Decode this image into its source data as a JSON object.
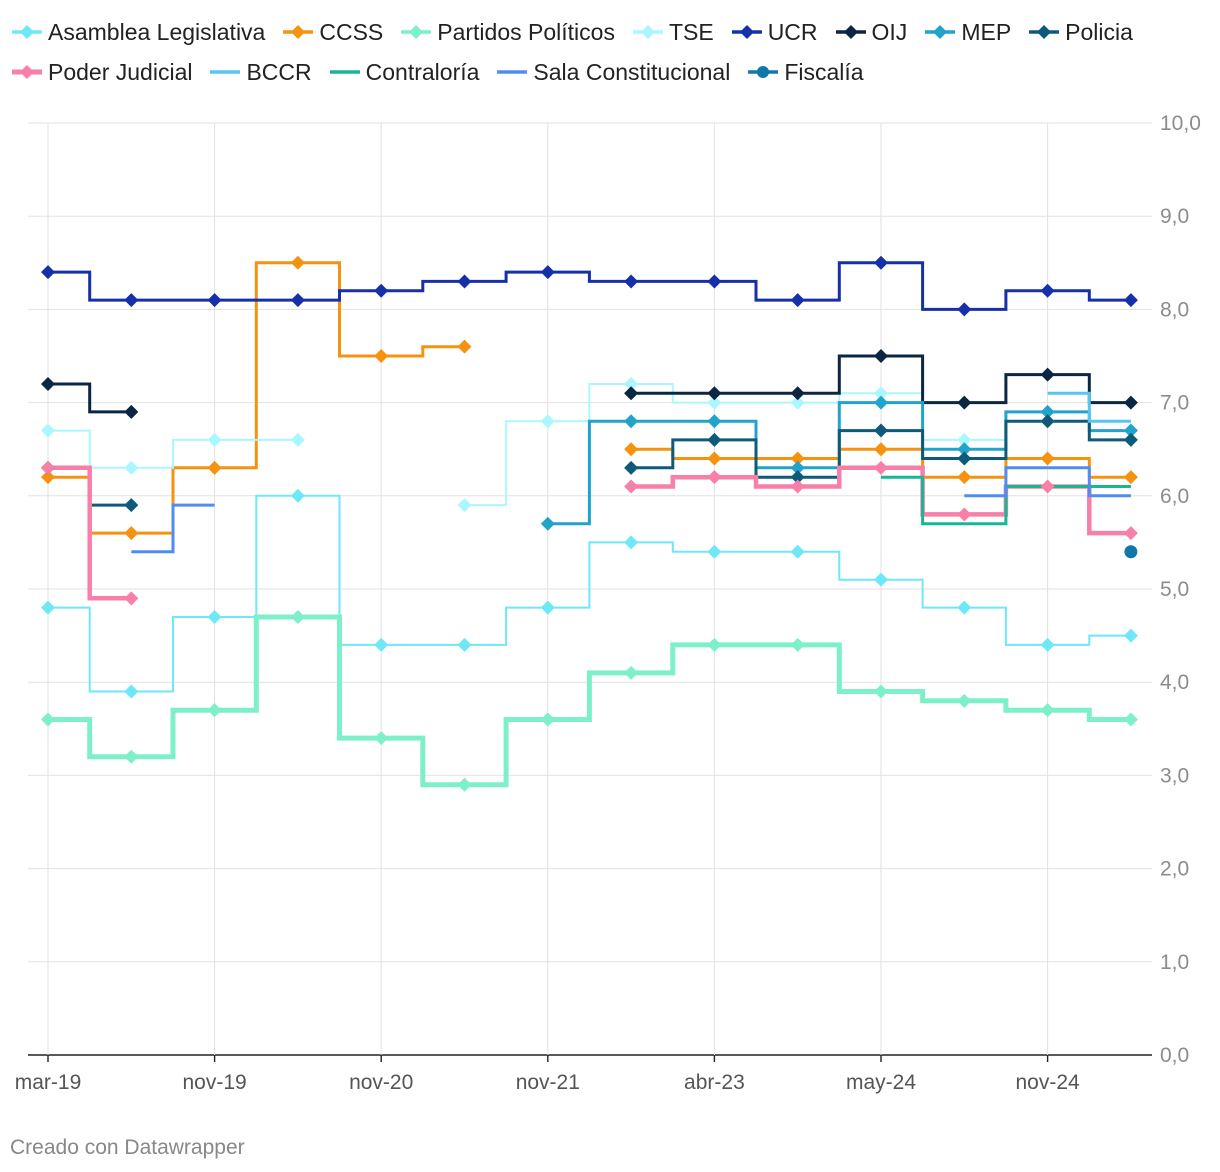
{
  "chart_data": {
    "type": "line",
    "step": true,
    "title": "",
    "xlabel": "",
    "ylabel": "",
    "ylim": [
      0,
      10
    ],
    "yticks": [
      "0,0",
      "1,0",
      "2,0",
      "3,0",
      "4,0",
      "5,0",
      "6,0",
      "7,0",
      "8,0",
      "9,0",
      "10,0"
    ],
    "x_ticks": [
      {
        "label": "mar-19",
        "period": 0
      },
      {
        "label": "nov-19",
        "period": 2
      },
      {
        "label": "nov-20",
        "period": 4
      },
      {
        "label": "nov-21",
        "period": 6
      },
      {
        "label": "abr-23",
        "period": 8
      },
      {
        "label": "may-24",
        "period": 10
      },
      {
        "label": "nov-24",
        "period": 12
      }
    ],
    "series": [
      {
        "name": "Asamblea Legislativa",
        "color": "#6ee8f7",
        "marker": "diamond",
        "values": [
          4.8,
          3.9,
          4.7,
          6.0,
          4.4,
          4.4,
          4.8,
          5.5,
          5.4,
          5.4,
          5.1,
          4.8,
          4.4,
          4.5
        ]
      },
      {
        "name": "CCSS",
        "color": "#f59210",
        "marker": "diamond",
        "values": [
          6.2,
          5.6,
          6.3,
          8.5,
          7.5,
          7.6,
          null,
          6.5,
          6.4,
          6.4,
          6.5,
          6.2,
          6.4,
          6.2
        ]
      },
      {
        "name": "Partidos Políticos",
        "color": "#7df0c8",
        "marker": "diamond",
        "values": [
          3.6,
          3.2,
          3.7,
          4.7,
          3.4,
          2.9,
          3.6,
          4.1,
          4.4,
          4.4,
          3.9,
          3.8,
          3.7,
          3.6
        ]
      },
      {
        "name": "TSE",
        "color": "#aaf7ff",
        "marker": "diamond",
        "values": [
          6.7,
          6.3,
          6.6,
          6.6,
          null,
          5.9,
          6.8,
          7.2,
          7.0,
          7.0,
          7.1,
          6.6,
          6.8,
          6.7
        ]
      },
      {
        "name": "UCR",
        "color": "#1530a8",
        "marker": "diamond",
        "values": [
          8.4,
          8.1,
          8.1,
          8.1,
          8.2,
          8.3,
          8.4,
          8.3,
          8.3,
          8.1,
          8.5,
          8.0,
          8.2,
          8.1
        ]
      },
      {
        "name": "OIJ",
        "color": "#0b2545",
        "marker": "diamond",
        "values": [
          7.2,
          6.9,
          null,
          null,
          null,
          null,
          null,
          7.1,
          7.1,
          7.1,
          7.5,
          7.0,
          7.3,
          7.0
        ]
      },
      {
        "name": "MEP",
        "color": "#22a3cc",
        "marker": "diamond",
        "values": [
          null,
          null,
          null,
          null,
          null,
          null,
          5.7,
          6.8,
          6.8,
          6.3,
          7.0,
          6.5,
          6.9,
          6.7
        ]
      },
      {
        "name": "Policia",
        "color": "#0e5a7a",
        "marker": "diamond",
        "values": [
          6.3,
          5.9,
          null,
          null,
          null,
          null,
          null,
          6.3,
          6.6,
          6.2,
          6.7,
          6.4,
          6.8,
          6.6
        ]
      },
      {
        "name": "Poder Judicial",
        "color": "#f77fa8",
        "marker": "diamond",
        "values": [
          6.3,
          4.9,
          null,
          null,
          null,
          null,
          null,
          6.1,
          6.2,
          6.1,
          6.3,
          5.8,
          6.1,
          5.6
        ]
      },
      {
        "name": "BCCR",
        "color": "#56c6f0",
        "marker": "none",
        "values": [
          null,
          null,
          null,
          null,
          null,
          null,
          null,
          null,
          null,
          null,
          null,
          null,
          7.1,
          6.8
        ]
      },
      {
        "name": "Contraloría",
        "color": "#15b893",
        "marker": "none",
        "values": [
          null,
          null,
          null,
          null,
          null,
          null,
          null,
          null,
          null,
          null,
          6.2,
          5.7,
          6.1,
          6.1
        ]
      },
      {
        "name": "Sala Constitucional",
        "color": "#4f8ef0",
        "marker": "none",
        "values": [
          null,
          5.4,
          5.9,
          null,
          null,
          null,
          null,
          null,
          null,
          null,
          null,
          6.0,
          6.3,
          6.0
        ]
      },
      {
        "name": "Fiscalía",
        "color": "#1078a8",
        "marker": "circle",
        "values": [
          null,
          null,
          null,
          null,
          null,
          null,
          null,
          null,
          null,
          null,
          null,
          null,
          null,
          5.4
        ]
      }
    ]
  },
  "credit": "Creado con Datawrapper"
}
